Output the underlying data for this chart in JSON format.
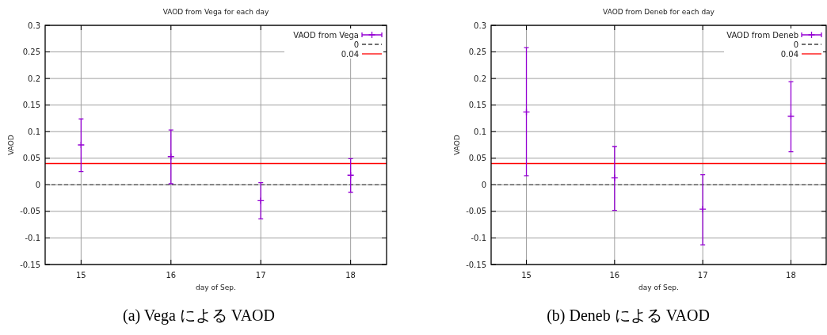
{
  "chart_data": [
    {
      "type": "scatter",
      "title": "VAOD from Vega for each day",
      "xlabel": "day of Sep.",
      "ylabel": "VAOD",
      "x": [
        15,
        16,
        17,
        18
      ],
      "series": [
        {
          "name": "VAOD from Vega",
          "color": "#9400d3",
          "values": [
            0.075,
            0.053,
            -0.03,
            0.018
          ],
          "errors": [
            [
              0.025,
              0.124
            ],
            [
              0.002,
              0.103
            ],
            [
              -0.064,
              0.004
            ],
            [
              -0.014,
              0.049
            ]
          ]
        }
      ],
      "xlim": [
        14.6,
        18.4
      ],
      "xticks": [
        15,
        16,
        17,
        18
      ],
      "ylim": [
        -0.15,
        0.3
      ],
      "yticks": [
        -0.15,
        -0.1,
        -0.05,
        0,
        0.05,
        0.1,
        0.15,
        0.2,
        0.25,
        0.3
      ],
      "grid": true,
      "legend": "top right",
      "marker": "cross",
      "ref_lines": [
        {
          "axis": "y",
          "value": 0,
          "label": "0",
          "color": "#404040",
          "line_style": "dashed"
        },
        {
          "axis": "y",
          "value": 0.04,
          "label": "0.04",
          "color": "#ff0000",
          "line_style": "solid"
        }
      ],
      "annotations": [
        "(a) Vega による VAOD"
      ]
    },
    {
      "type": "scatter",
      "title": "VAOD from Deneb for each day",
      "xlabel": "day of Sep.",
      "ylabel": "VAOD",
      "x": [
        15,
        16,
        17,
        18
      ],
      "series": [
        {
          "name": "VAOD from Deneb",
          "color": "#9400d3",
          "values": [
            0.137,
            0.013,
            -0.046,
            0.129
          ],
          "errors": [
            [
              0.017,
              0.258
            ],
            [
              -0.048,
              0.072
            ],
            [
              -0.113,
              0.019
            ],
            [
              0.062,
              0.194
            ]
          ]
        }
      ],
      "xlim": [
        14.6,
        18.4
      ],
      "xticks": [
        15,
        16,
        17,
        18
      ],
      "ylim": [
        -0.15,
        0.3
      ],
      "yticks": [
        -0.15,
        -0.1,
        -0.05,
        0,
        0.05,
        0.1,
        0.15,
        0.2,
        0.25,
        0.3
      ],
      "grid": true,
      "legend": "top right",
      "marker": "cross",
      "ref_lines": [
        {
          "axis": "y",
          "value": 0,
          "label": "0",
          "color": "#404040",
          "line_style": "dashed"
        },
        {
          "axis": "y",
          "value": 0.04,
          "label": "0.04",
          "color": "#ff0000",
          "line_style": "solid"
        }
      ],
      "annotations": [
        "(b) Deneb による VAOD"
      ]
    }
  ]
}
